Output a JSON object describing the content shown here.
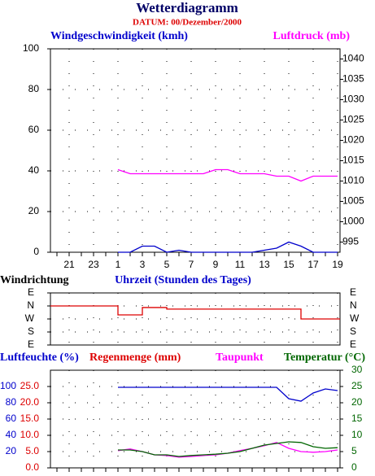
{
  "chart_data": [
    {
      "type": "line",
      "title": "Wetterdiagramm",
      "subtitle": "DATUM: 00/Dezember/2000",
      "xlabel": "Uhrzeit (Stunden des Tages)",
      "categories": [
        null,
        "21",
        null,
        "23",
        null,
        "1",
        null,
        "3",
        null,
        "5",
        null,
        "7",
        null,
        "9",
        null,
        "11",
        null,
        "13",
        null,
        "15",
        null,
        "17",
        null,
        "19"
      ],
      "series": [
        {
          "name": "Windgeschwindigkeit (kmh)",
          "color": "#0000cc",
          "values": [
            null,
            null,
            null,
            null,
            null,
            0,
            0,
            3,
            3,
            0,
            1,
            0,
            0,
            0,
            0,
            0,
            0,
            1,
            2,
            5,
            3,
            0,
            0,
            0
          ]
        },
        {
          "name": "Luftdruck (mb)",
          "color": "#ff00ff",
          "axis": "y2",
          "values": [
            null,
            null,
            null,
            null,
            null,
            1012.8,
            1011.8,
            1011.8,
            1011.8,
            1011.8,
            1011.8,
            1011.8,
            1011.8,
            1012.8,
            1012.8,
            1011.8,
            1011.8,
            1011.8,
            1011.2,
            1011.2,
            1010,
            1011.2,
            1011.2,
            1011.2
          ]
        }
      ],
      "ylim": [
        0,
        100
      ],
      "yticks": [
        0,
        20,
        40,
        60,
        80,
        100
      ],
      "y2lim": [
        992.5,
        1042.5
      ],
      "y2ticks": [
        995,
        1000,
        1005,
        1010,
        1015,
        1020,
        1025,
        1030,
        1035,
        1040
      ],
      "grid": true
    },
    {
      "type": "step",
      "ylabel": "Windrichtung",
      "series": [
        {
          "name": "Windrichtung",
          "color": "#dd0000",
          "values": [
            360,
            360,
            360,
            360,
            360,
            298,
            298,
            349,
            349,
            338,
            338,
            338,
            338,
            338,
            338,
            338,
            338,
            338,
            338,
            338,
            270,
            270,
            270,
            270
          ]
        }
      ],
      "ylim": [
        90,
        450
      ],
      "yticks": [
        {
          "value": 90,
          "label": "E"
        },
        {
          "value": 180,
          "label": "S"
        },
        {
          "value": 270,
          "label": "W"
        },
        {
          "value": 360,
          "label": "N"
        },
        {
          "value": 450,
          "label": "E"
        }
      ],
      "grid": true
    },
    {
      "type": "line",
      "series": [
        {
          "name": "Luftfeuchte (%)",
          "color": "#0000cc",
          "values": [
            null,
            null,
            null,
            null,
            null,
            99,
            99,
            99,
            99,
            99,
            99,
            99,
            99,
            99,
            99,
            99,
            99,
            99,
            99,
            85,
            82,
            92,
            97,
            95
          ]
        },
        {
          "name": "Taupunkt",
          "color": "#ff00ff",
          "axis": "y2",
          "values": [
            null,
            null,
            null,
            null,
            null,
            5.3,
            5.8,
            5.0,
            4.0,
            3.8,
            3.3,
            3.5,
            3.8,
            4.0,
            4.5,
            5.3,
            6.0,
            6.8,
            7.8,
            6.0,
            5.0,
            4.8,
            5.0,
            5.5
          ]
        },
        {
          "name": "Temperatur (°C)",
          "color": "#006600",
          "axis": "y2",
          "values": [
            null,
            null,
            null,
            null,
            null,
            5.5,
            5.5,
            5.0,
            4.0,
            4.0,
            3.5,
            3.8,
            4.0,
            4.2,
            4.5,
            5.0,
            6.0,
            7.0,
            7.5,
            8.0,
            7.8,
            6.5,
            6.0,
            6.2
          ]
        }
      ],
      "ylim": [
        0,
        120
      ],
      "yticks": [
        20,
        40,
        60,
        80,
        100
      ],
      "y3label": "Regenmenge (mm)",
      "y3lim": [
        0,
        30
      ],
      "y3ticks": [
        {
          "value": 0,
          "label": "0.0"
        },
        {
          "value": 5,
          "label": "5.0"
        },
        {
          "value": 10,
          "label": "10.0"
        },
        {
          "value": 15,
          "label": "15.0"
        },
        {
          "value": 20,
          "label": "20.0"
        },
        {
          "value": 25,
          "label": "25.0"
        }
      ],
      "y2lim": [
        0,
        30
      ],
      "y2ticks": [
        0,
        5,
        10,
        15,
        20,
        25,
        30
      ],
      "grid": true
    }
  ]
}
